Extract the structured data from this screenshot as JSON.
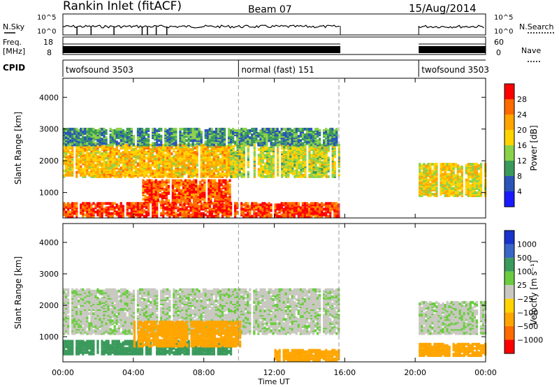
{
  "header": {
    "station": "Rankin Inlet (fitACF)",
    "beam": "Beam 07",
    "date": "15/Aug/2014"
  },
  "top_panels": {
    "nsky_label": "N.Sky",
    "nsky_ticks": [
      "10^5",
      "10^0"
    ],
    "nsearch_label": "N.Search",
    "nsearch_ticks": [
      "10^5",
      "10^0"
    ],
    "freq_label_1": "Freq.",
    "freq_label_2": "[MHz]",
    "freq_ticks": [
      "18",
      "8"
    ],
    "nave_label": "Nave",
    "nave_ticks": [
      "60",
      "0"
    ],
    "cpid_label": "CPID",
    "cpid_modes": [
      {
        "name": "twofsound 3503",
        "start": 0.0,
        "end": 9.97
      },
      {
        "name": "normal (fast) 151",
        "start": 9.97,
        "end": 15.67
      },
      {
        "name": "twofsound 3503",
        "start": 20.2,
        "end": 24.0
      }
    ]
  },
  "power_colorbar": {
    "title": "Power [dB]",
    "ticks": [
      "28",
      "24",
      "20",
      "16",
      "12",
      "8",
      "4"
    ],
    "colors": [
      "#ff0000",
      "#ff6a00",
      "#ffa500",
      "#ffd400",
      "#8ad24a",
      "#3a9a5c",
      "#2a54b8",
      "#1a1aff"
    ]
  },
  "velocity_colorbar": {
    "title": "Velocity [m s⁻¹]",
    "ticks": [
      "1000",
      "500",
      "100",
      "25",
      "−25",
      "−100",
      "−500",
      "−1000"
    ],
    "colors": [
      "#1a33cc",
      "#3a66c8",
      "#3a9a5c",
      "#6ccc40",
      "#c8c8c0",
      "#ffd400",
      "#ffa500",
      "#ff6a00",
      "#ff0000"
    ]
  },
  "chart_data": [
    {
      "type": "heatmap",
      "name": "Power",
      "ylabel": "Slant Range [km]",
      "ylim": [
        200,
        4600
      ],
      "yticks": [
        "1000",
        "2000",
        "3000",
        "4000"
      ],
      "xlim": [
        0,
        24
      ],
      "xticks": [
        "00:00",
        "04:00",
        "08:00",
        "12:00",
        "16:00",
        "20:00",
        "00:00"
      ],
      "regions": [
        {
          "t0": 0.0,
          "t1": 15.7,
          "r0": 250,
          "r1": 700,
          "value": 26
        },
        {
          "t0": 4.5,
          "t1": 9.5,
          "r0": 700,
          "r1": 1400,
          "value": 25
        },
        {
          "t0": 0.0,
          "t1": 9.5,
          "r0": 1500,
          "r1": 2500,
          "value": 18
        },
        {
          "t0": 9.5,
          "t1": 15.7,
          "r0": 1500,
          "r1": 2500,
          "value": 14
        },
        {
          "t0": 0.0,
          "t1": 15.7,
          "r0": 2500,
          "r1": 3000,
          "value": 8
        },
        {
          "t0": 20.2,
          "t1": 24.0,
          "r0": 900,
          "r1": 1900,
          "value": 16
        }
      ]
    },
    {
      "type": "heatmap",
      "name": "Velocity",
      "ylabel": "Slant Range [km]",
      "ylim": [
        200,
        4600
      ],
      "yticks": [
        "1000",
        "2000",
        "3000",
        "4000"
      ],
      "xlim": [
        0,
        24
      ],
      "xlabel": "Time UT",
      "xticks": [
        "00:00",
        "04:00",
        "08:00",
        "12:00",
        "16:00",
        "20:00",
        "00:00"
      ],
      "regions": [
        {
          "t0": 0.0,
          "t1": 15.7,
          "r0": 1100,
          "r1": 2500,
          "value": 10
        },
        {
          "t0": 0.0,
          "t1": 9.5,
          "r0": 450,
          "r1": 900,
          "value": 200
        },
        {
          "t0": 4.0,
          "t1": 10.0,
          "r0": 700,
          "r1": 1500,
          "value": -200
        },
        {
          "t0": 12.0,
          "t1": 15.7,
          "r0": 250,
          "r1": 600,
          "value": -200
        },
        {
          "t0": 20.2,
          "t1": 24.0,
          "r0": 1100,
          "r1": 2100,
          "value": 10
        },
        {
          "t0": 20.2,
          "t1": 24.0,
          "r0": 400,
          "r1": 800,
          "value": -150
        }
      ]
    }
  ],
  "data_gap": {
    "start": 15.75,
    "end": 20.2
  },
  "dashed_marks": [
    9.97,
    15.67
  ]
}
